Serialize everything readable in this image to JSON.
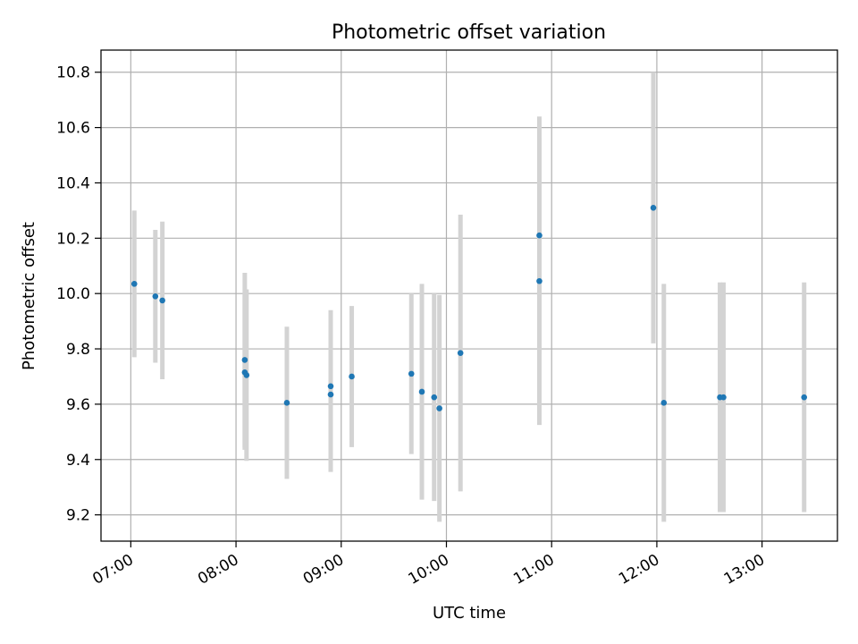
{
  "chart_data": {
    "type": "scatter",
    "title": "Photometric offset variation",
    "xlabel": "UTC time",
    "ylabel": "Photometric offset",
    "x_axis_type": "time",
    "xlim": [
      "06:43",
      "13:43"
    ],
    "ylim": [
      9.105,
      10.88
    ],
    "x_ticks": [
      "07:00",
      "08:00",
      "09:00",
      "10:00",
      "11:00",
      "12:00",
      "13:00"
    ],
    "y_ticks": [
      9.2,
      9.4,
      9.6,
      9.8,
      10.0,
      10.2,
      10.4,
      10.6,
      10.8
    ],
    "y_tick_labels": [
      "9.2",
      "9.4",
      "9.6",
      "9.8",
      "10.0",
      "10.2",
      "10.4",
      "10.6",
      "10.8"
    ],
    "grid": true,
    "legend": false,
    "colors": {
      "point": "#1f77b4",
      "errorbar": "#d3d3d3",
      "grid": "#b0b0b0",
      "axes": "#000000"
    },
    "points": [
      {
        "x": "07:02",
        "y": 10.035,
        "err": 0.265
      },
      {
        "x": "07:14",
        "y": 9.99,
        "err": 0.24
      },
      {
        "x": "07:18",
        "y": 9.975,
        "err": 0.285
      },
      {
        "x": "08:05",
        "y": 9.715,
        "err": 0.28
      },
      {
        "x": "08:05",
        "y": 9.76,
        "err": 0.315
      },
      {
        "x": "08:06",
        "y": 9.705,
        "err": 0.31
      },
      {
        "x": "08:29",
        "y": 9.605,
        "err": 0.275
      },
      {
        "x": "08:54",
        "y": 9.665,
        "err": 0.275
      },
      {
        "x": "08:54",
        "y": 9.635,
        "err": 0.28
      },
      {
        "x": "09:06",
        "y": 9.7,
        "err": 0.255
      },
      {
        "x": "09:40",
        "y": 9.71,
        "err": 0.29
      },
      {
        "x": "09:46",
        "y": 9.645,
        "err": 0.39
      },
      {
        "x": "09:53",
        "y": 9.625,
        "err": 0.375
      },
      {
        "x": "09:56",
        "y": 9.585,
        "err": 0.41
      },
      {
        "x": "10:08",
        "y": 9.785,
        "err": 0.5
      },
      {
        "x": "10:53",
        "y": 10.21,
        "err": 0.43
      },
      {
        "x": "10:53",
        "y": 10.045,
        "err": 0.52
      },
      {
        "x": "11:58",
        "y": 10.31,
        "err": 0.49
      },
      {
        "x": "12:04",
        "y": 9.605,
        "err": 0.43
      },
      {
        "x": "12:36",
        "y": 9.625,
        "err": 0.415
      },
      {
        "x": "12:38",
        "y": 9.625,
        "err": 0.415
      },
      {
        "x": "13:24",
        "y": 9.625,
        "err": 0.415
      }
    ]
  }
}
